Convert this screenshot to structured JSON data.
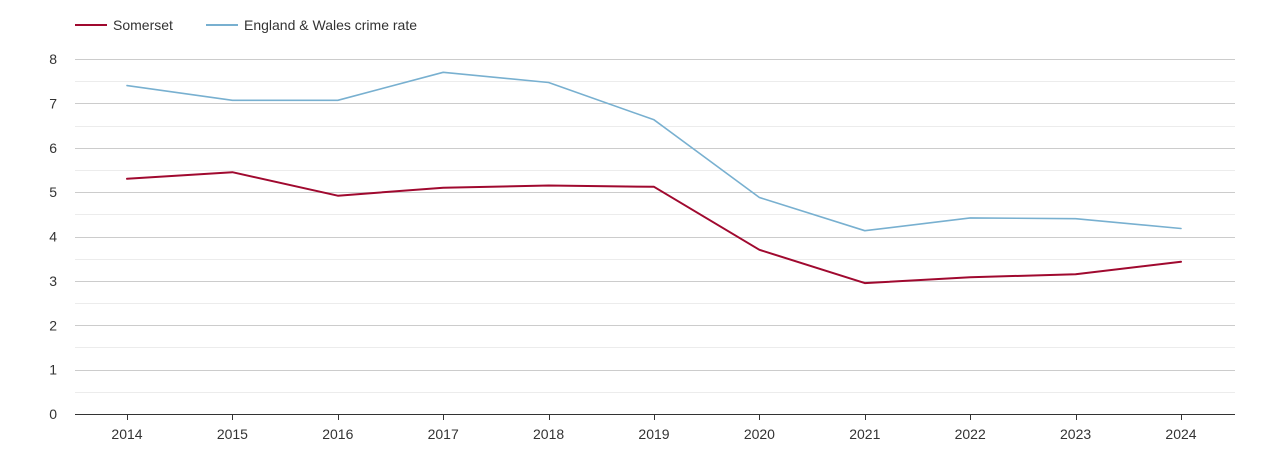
{
  "chart_data": {
    "type": "line",
    "title": "",
    "xlabel": "",
    "ylabel": "",
    "x": [
      "2014",
      "2015",
      "2016",
      "2017",
      "2018",
      "2019",
      "2020",
      "2021",
      "2022",
      "2023",
      "2024"
    ],
    "ylim": [
      0,
      8
    ],
    "yticks": [
      "0",
      "1",
      "2",
      "3",
      "4",
      "5",
      "6",
      "7",
      "8"
    ],
    "grid": true,
    "legend_position": "top-left",
    "series": [
      {
        "name": "Somerset",
        "color": "#a0092f",
        "values": [
          5.3,
          5.45,
          4.92,
          5.1,
          5.15,
          5.12,
          3.7,
          2.95,
          3.08,
          3.15,
          3.43
        ]
      },
      {
        "name": "England & Wales crime rate",
        "color": "#78b0d0",
        "values": [
          7.4,
          7.07,
          7.07,
          7.7,
          7.47,
          6.63,
          4.88,
          4.13,
          4.42,
          4.4,
          4.18
        ]
      }
    ]
  }
}
